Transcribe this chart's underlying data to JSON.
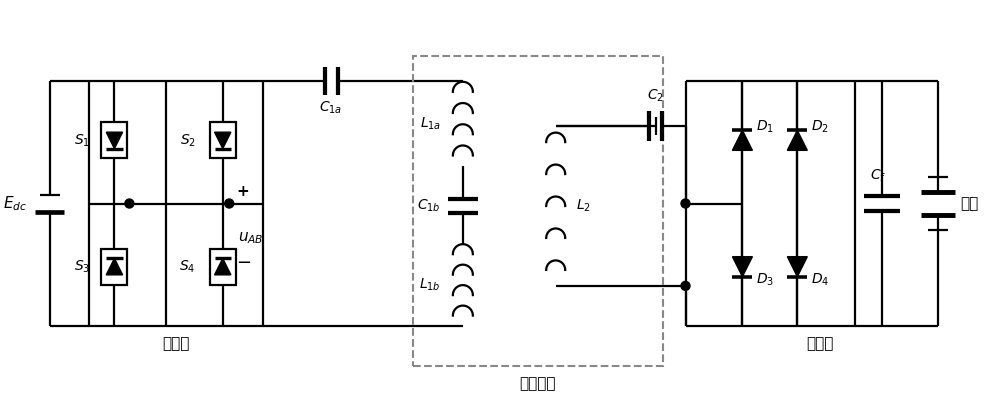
{
  "bg": "#ffffff",
  "lc": "#000000",
  "dc": "#888888",
  "labels": {
    "Edc": "$E_{dc}$",
    "S1": "$S_{1}$",
    "S2": "$S_{2}$",
    "S3": "$S_{3}$",
    "S4": "$S_{4}$",
    "C1a": "$C_{1a}$",
    "C1b": "$C_{1b}$",
    "L1a": "$L_{1a}$",
    "L1b": "$L_{1b}$",
    "L2": "$L_{2}$",
    "C2": "$C_{2}$",
    "Cf": "$C_{f}$",
    "D1": "$D_{1}$",
    "D2": "$D_{2}$",
    "D3": "$D_{3}$",
    "D4": "$D_{4}$",
    "transmitter": "发射端",
    "coupler": "耦合机构",
    "receiver": "接收端",
    "battery": "电池",
    "plus": "+",
    "minus": "−",
    "uAB": "$u_{AB}$"
  }
}
